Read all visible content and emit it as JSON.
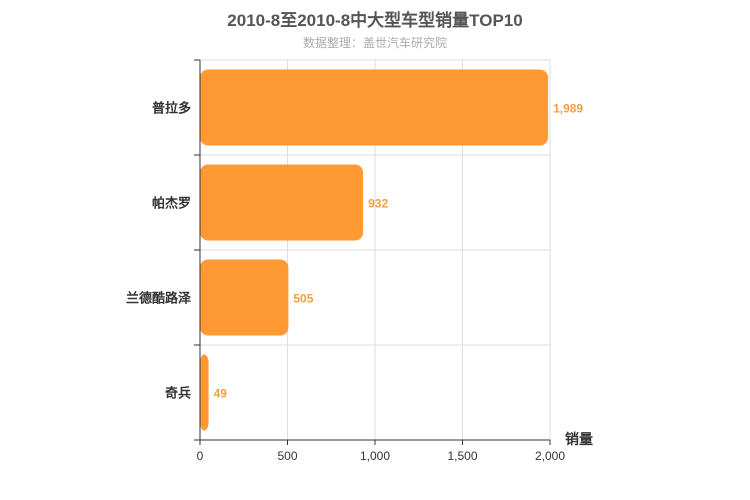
{
  "chart_data": {
    "type": "bar",
    "orientation": "horizontal",
    "title": "2010-8至2010-8中大型车型销量TOP10",
    "subtitle": "数据整理：盖世汽车研究院",
    "categories": [
      "普拉多",
      "帕杰罗",
      "兰德酷路泽",
      "奇兵"
    ],
    "values": [
      1989,
      932,
      505,
      49
    ],
    "value_labels": [
      "1,989",
      "932",
      "505",
      "49"
    ],
    "xlabel": "销量",
    "xlim": [
      0,
      2000
    ],
    "xticks": [
      0,
      500,
      1000,
      1500,
      2000
    ],
    "xtick_labels": [
      "0",
      "500",
      "1,000",
      "1,500",
      "2,000"
    ],
    "grid": true,
    "bar_color": "#ff9933",
    "value_label_color": "#f0a040"
  }
}
